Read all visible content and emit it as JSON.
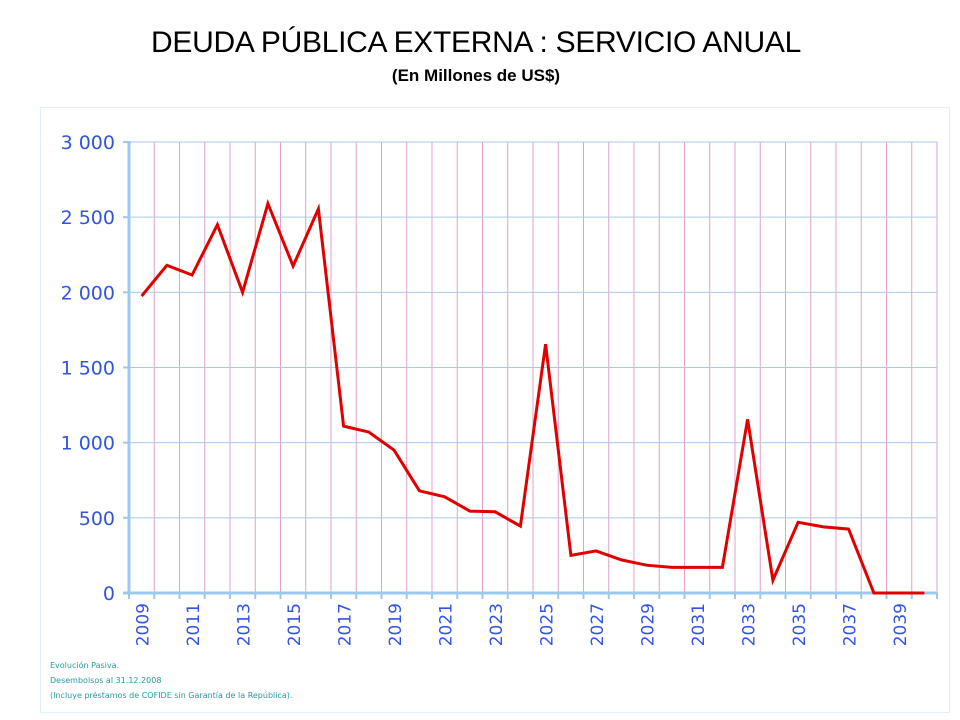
{
  "chart_data": {
    "type": "line",
    "title": "DEUDA PÚBLICA EXTERNA : SERVICIO ANUAL",
    "subtitle": "(En Millones de US$)",
    "xlabel": "",
    "ylabel": "",
    "ylim": [
      0,
      3000
    ],
    "yticks": [
      0,
      500,
      1000,
      1500,
      2000,
      2500,
      3000
    ],
    "ytick_labels": [
      "0",
      "500",
      "1 000",
      "1 500",
      "2 000",
      "2 500",
      "3 000"
    ],
    "x": [
      2009,
      2010,
      2011,
      2012,
      2013,
      2014,
      2015,
      2016,
      2017,
      2018,
      2019,
      2020,
      2021,
      2022,
      2023,
      2024,
      2025,
      2026,
      2027,
      2028,
      2029,
      2030,
      2031,
      2032,
      2033,
      2034,
      2035,
      2036,
      2037,
      2038,
      2039,
      2040
    ],
    "xtick_labels": [
      "2009",
      "2011",
      "2013",
      "2015",
      "2017",
      "2019",
      "2021",
      "2023",
      "2025",
      "2027",
      "2029",
      "2031",
      "2033",
      "2035",
      "2037",
      "2039"
    ],
    "series": [
      {
        "name": "Servicio anual",
        "color": "#e00000",
        "values": [
          1975,
          2180,
          2115,
          2450,
          2000,
          2590,
          2175,
          2555,
          1110,
          1070,
          950,
          680,
          640,
          545,
          540,
          445,
          1655,
          250,
          280,
          220,
          185,
          170,
          170,
          170,
          1155,
          85,
          470,
          440,
          425,
          0,
          0,
          0
        ]
      }
    ],
    "grid": true,
    "legend": "none",
    "colors": {
      "axis": "#9cc8f0",
      "h_grid": "#a9c9ec",
      "v_grid": "#e2a0cc",
      "tick_label": "#3355dd",
      "line": "#e00000"
    }
  },
  "notes": [
    "Evolución Pasiva.",
    "Desembolsos al 31.12.2008",
    " (Incluye préstamos de COFIDE sin Garantía de la República)."
  ]
}
